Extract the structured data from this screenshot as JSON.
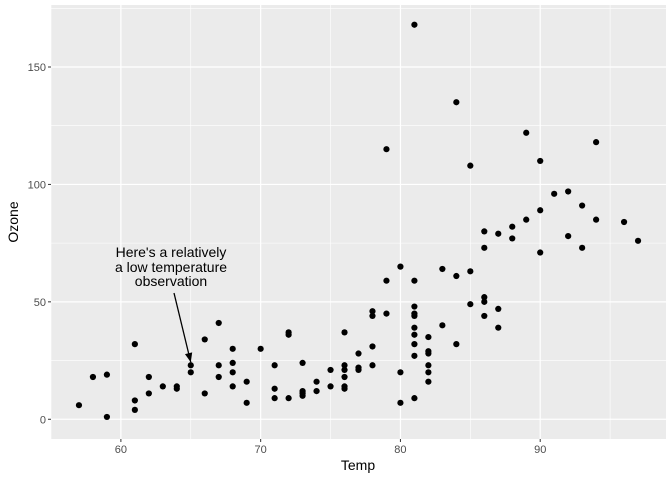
{
  "chart_data": {
    "type": "scatter",
    "title": "",
    "xlabel": "Temp",
    "ylabel": "Ozone",
    "xlim": [
      55.0,
      99.0
    ],
    "ylim": [
      -8.4,
      176.4
    ],
    "xticks": [
      60,
      70,
      80,
      90
    ],
    "yticks": [
      0,
      50,
      100,
      150
    ],
    "grid": true,
    "legend": "none",
    "colors": {
      "panel_background": "#ebebeb",
      "grid_line": "#ffffff",
      "point": "#000000",
      "tick_text": "#4d4d4d"
    },
    "annotation": {
      "lines": [
        "Here's a relatively",
        "a low temperature",
        "observation"
      ],
      "arrow_target": [
        65,
        23
      ]
    },
    "points": [
      [
        57,
        6
      ],
      [
        58,
        18
      ],
      [
        59,
        19
      ],
      [
        59,
        1
      ],
      [
        61,
        32
      ],
      [
        61,
        8
      ],
      [
        61,
        4
      ],
      [
        62,
        18
      ],
      [
        62,
        11
      ],
      [
        63,
        14
      ],
      [
        64,
        14
      ],
      [
        64,
        13
      ],
      [
        65,
        23
      ],
      [
        65,
        20
      ],
      [
        66,
        34
      ],
      [
        66,
        11
      ],
      [
        67,
        41
      ],
      [
        67,
        23
      ],
      [
        67,
        18
      ],
      [
        68,
        30
      ],
      [
        68,
        24
      ],
      [
        68,
        20
      ],
      [
        68,
        14
      ],
      [
        69,
        16
      ],
      [
        69,
        7
      ],
      [
        70,
        30
      ],
      [
        71,
        23
      ],
      [
        71,
        13
      ],
      [
        71,
        9
      ],
      [
        72,
        37
      ],
      [
        72,
        36
      ],
      [
        72,
        9
      ],
      [
        73,
        24
      ],
      [
        73,
        12
      ],
      [
        73,
        11
      ],
      [
        73,
        10
      ],
      [
        74,
        16
      ],
      [
        74,
        12
      ],
      [
        75,
        21
      ],
      [
        75,
        14
      ],
      [
        76,
        37
      ],
      [
        76,
        23
      ],
      [
        76,
        21
      ],
      [
        76,
        18
      ],
      [
        76,
        14
      ],
      [
        76,
        13
      ],
      [
        77,
        28
      ],
      [
        77,
        22
      ],
      [
        77,
        21
      ],
      [
        78,
        46
      ],
      [
        78,
        44
      ],
      [
        78,
        31
      ],
      [
        78,
        23
      ],
      [
        79,
        115
      ],
      [
        79,
        59
      ],
      [
        79,
        45
      ],
      [
        80,
        65
      ],
      [
        80,
        20
      ],
      [
        80,
        7
      ],
      [
        81,
        168
      ],
      [
        81,
        59
      ],
      [
        81,
        48
      ],
      [
        81,
        45
      ],
      [
        81,
        44
      ],
      [
        81,
        39
      ],
      [
        81,
        36
      ],
      [
        81,
        32
      ],
      [
        81,
        27
      ],
      [
        81,
        9
      ],
      [
        82,
        35
      ],
      [
        82,
        29
      ],
      [
        82,
        28
      ],
      [
        82,
        23
      ],
      [
        82,
        20
      ],
      [
        82,
        16
      ],
      [
        83,
        64
      ],
      [
        83,
        40
      ],
      [
        84,
        135
      ],
      [
        84,
        61
      ],
      [
        84,
        32
      ],
      [
        85,
        108
      ],
      [
        85,
        63
      ],
      [
        85,
        49
      ],
      [
        86,
        80
      ],
      [
        86,
        73
      ],
      [
        86,
        52
      ],
      [
        86,
        50
      ],
      [
        86,
        44
      ],
      [
        87,
        79
      ],
      [
        87,
        47
      ],
      [
        87,
        39
      ],
      [
        88,
        82
      ],
      [
        88,
        77
      ],
      [
        89,
        122
      ],
      [
        89,
        85
      ],
      [
        90,
        110
      ],
      [
        90,
        89
      ],
      [
        90,
        71
      ],
      [
        91,
        96
      ],
      [
        92,
        97
      ],
      [
        92,
        78
      ],
      [
        93,
        91
      ],
      [
        93,
        73
      ],
      [
        94,
        118
      ],
      [
        94,
        85
      ],
      [
        96,
        84
      ],
      [
        97,
        76
      ]
    ]
  }
}
